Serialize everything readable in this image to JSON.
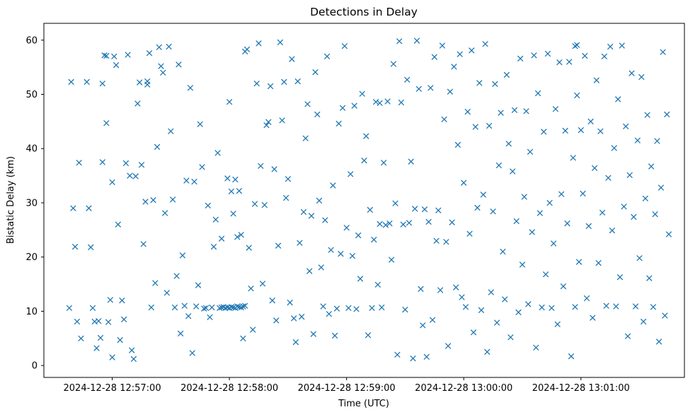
{
  "figure": {
    "title": "Detections in Delay",
    "xlabel": "Time (UTC)",
    "ylabel": "Bistatic Delay (km)"
  },
  "chart_data": {
    "type": "scatter",
    "title": "Detections in Delay",
    "xlabel": "Time (UTC)",
    "ylabel": "Bistatic Delay (km)",
    "marker": "x",
    "marker_color": "#1f77b4",
    "axis_color": "#000000",
    "legend": "none",
    "grid": false,
    "x_tick_labels": [
      "2024-12-28 12:57:00",
      "2024-12-28 12:58:00",
      "2024-12-28 12:59:00",
      "2024-12-28 13:00:00",
      "2024-12-28 13:01:00"
    ],
    "x_tick_seconds": [
      15,
      75,
      135,
      195,
      255
    ],
    "x_domain_seconds": [
      -20,
      308
    ],
    "time_origin_utc": "2024-12-28 12:56:45",
    "y_ticks": [
      0,
      10,
      20,
      30,
      40,
      50,
      60
    ],
    "y_domain": [
      -2.2,
      63.1
    ],
    "points_format": [
      "seconds_after_origin",
      "bistatic_delay_km"
    ],
    "points": [
      [
        -7,
        10.6
      ],
      [
        -6,
        52.3
      ],
      [
        -5,
        29.0
      ],
      [
        -4,
        21.9
      ],
      [
        -3,
        8.1
      ],
      [
        -2,
        37.4
      ],
      [
        -1,
        5.0
      ],
      [
        2,
        52.3
      ],
      [
        3,
        29.0
      ],
      [
        4,
        21.8
      ],
      [
        5,
        10.6
      ],
      [
        6,
        8.1
      ],
      [
        7,
        3.2
      ],
      [
        8,
        8.2
      ],
      [
        9,
        5.1
      ],
      [
        10,
        37.5
      ],
      [
        10,
        52.0
      ],
      [
        11,
        57.2
      ],
      [
        12,
        57.1
      ],
      [
        12,
        44.7
      ],
      [
        13,
        8.0
      ],
      [
        14,
        12.1
      ],
      [
        15,
        1.5
      ],
      [
        15,
        33.8
      ],
      [
        16,
        57.0
      ],
      [
        17,
        55.4
      ],
      [
        18,
        26.0
      ],
      [
        19,
        4.7
      ],
      [
        20,
        12.0
      ],
      [
        21,
        8.5
      ],
      [
        22,
        37.3
      ],
      [
        23,
        57.3
      ],
      [
        24,
        35.0
      ],
      [
        25,
        2.8
      ],
      [
        26,
        1.2
      ],
      [
        27,
        34.9
      ],
      [
        28,
        48.3
      ],
      [
        29,
        52.2
      ],
      [
        30,
        37.0
      ],
      [
        31,
        22.4
      ],
      [
        32,
        30.2
      ],
      [
        33,
        51.8
      ],
      [
        33,
        52.4
      ],
      [
        34,
        57.6
      ],
      [
        35,
        10.7
      ],
      [
        36,
        30.5
      ],
      [
        37,
        15.2
      ],
      [
        38,
        40.3
      ],
      [
        39,
        58.7
      ],
      [
        40,
        55.2
      ],
      [
        41,
        54.0
      ],
      [
        42,
        28.1
      ],
      [
        43,
        13.4
      ],
      [
        44,
        58.8
      ],
      [
        45,
        43.2
      ],
      [
        46,
        30.6
      ],
      [
        47,
        10.7
      ],
      [
        48,
        16.5
      ],
      [
        49,
        55.5
      ],
      [
        50,
        5.9
      ],
      [
        51,
        20.3
      ],
      [
        52,
        11.0
      ],
      [
        53,
        34.1
      ],
      [
        54,
        9.1
      ],
      [
        55,
        51.2
      ],
      [
        56,
        2.3
      ],
      [
        57,
        33.9
      ],
      [
        58,
        10.9
      ],
      [
        59,
        14.8
      ],
      [
        60,
        44.5
      ],
      [
        61,
        36.6
      ],
      [
        62,
        10.5
      ],
      [
        63,
        10.6
      ],
      [
        64,
        29.5
      ],
      [
        65,
        8.9
      ],
      [
        66,
        10.7
      ],
      [
        67,
        21.9
      ],
      [
        68,
        26.9
      ],
      [
        69,
        39.2
      ],
      [
        70,
        10.6
      ],
      [
        71,
        10.7
      ],
      [
        71,
        23.4
      ],
      [
        72,
        10.8
      ],
      [
        73,
        10.6
      ],
      [
        74,
        34.5
      ],
      [
        74,
        10.7
      ],
      [
        75,
        48.6
      ],
      [
        75,
        10.6
      ],
      [
        76,
        32.1
      ],
      [
        76,
        10.8
      ],
      [
        77,
        10.7
      ],
      [
        77,
        28.0
      ],
      [
        78,
        10.6
      ],
      [
        78,
        34.3
      ],
      [
        79,
        10.9
      ],
      [
        79,
        23.7
      ],
      [
        80,
        10.8
      ],
      [
        80,
        32.2
      ],
      [
        81,
        10.7
      ],
      [
        81,
        24.1
      ],
      [
        82,
        10.9
      ],
      [
        82,
        5.0
      ],
      [
        83,
        11.0
      ],
      [
        83,
        57.9
      ],
      [
        84,
        58.3
      ],
      [
        85,
        21.7
      ],
      [
        86,
        14.2
      ],
      [
        87,
        6.6
      ],
      [
        88,
        29.8
      ],
      [
        89,
        52.0
      ],
      [
        90,
        59.4
      ],
      [
        91,
        36.8
      ],
      [
        92,
        15.1
      ],
      [
        93,
        29.6
      ],
      [
        94,
        44.3
      ],
      [
        95,
        44.9
      ],
      [
        96,
        51.5
      ],
      [
        97,
        12.0
      ],
      [
        98,
        36.2
      ],
      [
        99,
        8.3
      ],
      [
        100,
        22.1
      ],
      [
        101,
        59.6
      ],
      [
        102,
        45.2
      ],
      [
        103,
        52.3
      ],
      [
        104,
        30.9
      ],
      [
        105,
        34.4
      ],
      [
        106,
        11.6
      ],
      [
        107,
        56.5
      ],
      [
        108,
        8.7
      ],
      [
        109,
        4.3
      ],
      [
        110,
        52.4
      ],
      [
        111,
        22.6
      ],
      [
        112,
        9.0
      ],
      [
        113,
        28.3
      ],
      [
        114,
        41.9
      ],
      [
        115,
        48.2
      ],
      [
        116,
        17.4
      ],
      [
        117,
        27.6
      ],
      [
        118,
        5.8
      ],
      [
        119,
        54.1
      ],
      [
        120,
        46.3
      ],
      [
        121,
        30.4
      ],
      [
        122,
        18.1
      ],
      [
        123,
        10.9
      ],
      [
        124,
        26.8
      ],
      [
        125,
        57.0
      ],
      [
        126,
        9.5
      ],
      [
        127,
        21.3
      ],
      [
        128,
        33.2
      ],
      [
        129,
        5.5
      ],
      [
        130,
        10.5
      ],
      [
        131,
        44.6
      ],
      [
        132,
        20.6
      ],
      [
        133,
        47.5
      ],
      [
        134,
        58.9
      ],
      [
        135,
        25.4
      ],
      [
        136,
        10.6
      ],
      [
        137,
        35.3
      ],
      [
        138,
        20.2
      ],
      [
        139,
        47.9
      ],
      [
        140,
        10.4
      ],
      [
        141,
        24.0
      ],
      [
        142,
        16.0
      ],
      [
        143,
        50.1
      ],
      [
        144,
        37.8
      ],
      [
        145,
        42.3
      ],
      [
        146,
        5.6
      ],
      [
        147,
        28.7
      ],
      [
        148,
        10.6
      ],
      [
        149,
        23.2
      ],
      [
        150,
        48.6
      ],
      [
        151,
        14.9
      ],
      [
        152,
        26.1
      ],
      [
        152,
        48.4
      ],
      [
        153,
        10.7
      ],
      [
        154,
        37.4
      ],
      [
        155,
        25.9
      ],
      [
        156,
        48.7
      ],
      [
        157,
        26.2
      ],
      [
        158,
        19.5
      ],
      [
        159,
        55.6
      ],
      [
        160,
        29.9
      ],
      [
        161,
        2.0
      ],
      [
        162,
        59.8
      ],
      [
        163,
        48.5
      ],
      [
        164,
        26.0
      ],
      [
        165,
        10.3
      ],
      [
        166,
        52.7
      ],
      [
        167,
        26.3
      ],
      [
        168,
        37.6
      ],
      [
        169,
        1.3
      ],
      [
        170,
        28.9
      ],
      [
        171,
        59.9
      ],
      [
        172,
        51.0
      ],
      [
        173,
        14.1
      ],
      [
        174,
        7.4
      ],
      [
        175,
        28.8
      ],
      [
        176,
        1.6
      ],
      [
        177,
        26.5
      ],
      [
        178,
        51.2
      ],
      [
        179,
        8.4
      ],
      [
        180,
        56.9
      ],
      [
        181,
        23.0
      ],
      [
        182,
        28.6
      ],
      [
        183,
        13.9
      ],
      [
        184,
        59.0
      ],
      [
        185,
        45.4
      ],
      [
        186,
        22.8
      ],
      [
        187,
        3.6
      ],
      [
        188,
        50.5
      ],
      [
        189,
        26.4
      ],
      [
        190,
        55.1
      ],
      [
        191,
        14.4
      ],
      [
        192,
        40.7
      ],
      [
        193,
        57.4
      ],
      [
        194,
        12.6
      ],
      [
        195,
        33.7
      ],
      [
        196,
        10.8
      ],
      [
        197,
        46.8
      ],
      [
        198,
        24.3
      ],
      [
        199,
        58.1
      ],
      [
        200,
        6.1
      ],
      [
        201,
        44.0
      ],
      [
        202,
        29.1
      ],
      [
        203,
        52.1
      ],
      [
        204,
        10.2
      ],
      [
        205,
        31.5
      ],
      [
        206,
        59.3
      ],
      [
        207,
        2.5
      ],
      [
        208,
        44.2
      ],
      [
        209,
        13.5
      ],
      [
        210,
        28.4
      ],
      [
        211,
        51.9
      ],
      [
        212,
        7.9
      ],
      [
        213,
        36.9
      ],
      [
        214,
        46.6
      ],
      [
        215,
        21.0
      ],
      [
        216,
        12.2
      ],
      [
        217,
        53.6
      ],
      [
        218,
        40.9
      ],
      [
        219,
        5.2
      ],
      [
        220,
        35.8
      ],
      [
        221,
        47.1
      ],
      [
        222,
        26.6
      ],
      [
        223,
        9.8
      ],
      [
        224,
        56.6
      ],
      [
        225,
        18.6
      ],
      [
        226,
        31.1
      ],
      [
        227,
        46.9
      ],
      [
        228,
        11.3
      ],
      [
        229,
        39.4
      ],
      [
        230,
        24.6
      ],
      [
        231,
        57.2
      ],
      [
        232,
        3.3
      ],
      [
        233,
        50.2
      ],
      [
        234,
        28.1
      ],
      [
        235,
        10.7
      ],
      [
        236,
        43.1
      ],
      [
        237,
        16.8
      ],
      [
        238,
        57.5
      ],
      [
        239,
        30.0
      ],
      [
        240,
        10.6
      ],
      [
        241,
        22.5
      ],
      [
        242,
        47.3
      ],
      [
        243,
        7.6
      ],
      [
        244,
        55.9
      ],
      [
        245,
        31.6
      ],
      [
        246,
        14.6
      ],
      [
        247,
        43.3
      ],
      [
        248,
        26.2
      ],
      [
        249,
        56.0
      ],
      [
        250,
        1.7
      ],
      [
        251,
        38.3
      ],
      [
        252,
        10.8
      ],
      [
        252,
        58.9
      ],
      [
        253,
        49.8
      ],
      [
        253,
        59.1
      ],
      [
        254,
        19.1
      ],
      [
        255,
        43.4
      ],
      [
        256,
        31.7
      ],
      [
        257,
        57.1
      ],
      [
        258,
        12.4
      ],
      [
        259,
        25.7
      ],
      [
        260,
        45.0
      ],
      [
        261,
        8.8
      ],
      [
        262,
        36.4
      ],
      [
        263,
        52.6
      ],
      [
        264,
        18.9
      ],
      [
        265,
        43.2
      ],
      [
        266,
        28.2
      ],
      [
        267,
        57.0
      ],
      [
        268,
        11.0
      ],
      [
        269,
        34.6
      ],
      [
        270,
        58.8
      ],
      [
        271,
        24.9
      ],
      [
        272,
        40.1
      ],
      [
        273,
        10.9
      ],
      [
        274,
        49.1
      ],
      [
        275,
        16.3
      ],
      [
        276,
        59.0
      ],
      [
        277,
        29.3
      ],
      [
        278,
        44.1
      ],
      [
        279,
        5.4
      ],
      [
        280,
        35.1
      ],
      [
        281,
        53.9
      ],
      [
        282,
        27.4
      ],
      [
        283,
        10.9
      ],
      [
        284,
        41.5
      ],
      [
        285,
        19.8
      ],
      [
        286,
        53.2
      ],
      [
        287,
        8.1
      ],
      [
        288,
        30.8
      ],
      [
        289,
        46.2
      ],
      [
        290,
        16.1
      ],
      [
        291,
        36.7
      ],
      [
        292,
        10.8
      ],
      [
        293,
        27.9
      ],
      [
        294,
        41.4
      ],
      [
        295,
        4.4
      ],
      [
        296,
        32.8
      ],
      [
        297,
        57.8
      ],
      [
        298,
        9.2
      ],
      [
        299,
        46.3
      ],
      [
        300,
        24.2
      ]
    ]
  }
}
